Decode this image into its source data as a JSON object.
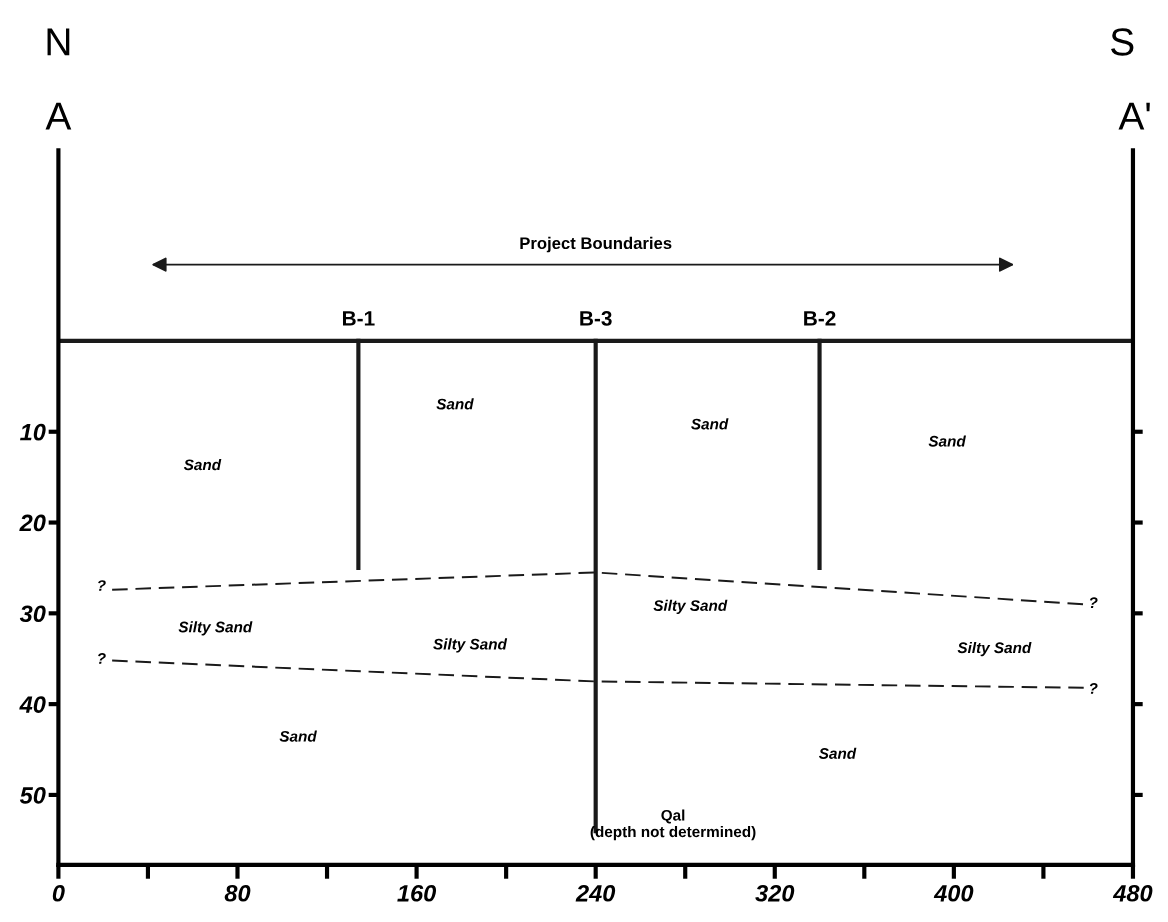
{
  "chart_data": {
    "type": "line",
    "xlim": [
      0,
      480
    ],
    "ylim": [
      57.7,
      -21
    ],
    "xticks": [
      0,
      {
        "value": 40,
        "label": null
      },
      80,
      {
        "value": 120,
        "label": null
      },
      160,
      {
        "value": 200,
        "label": null
      },
      240,
      {
        "value": 280,
        "label": null
      },
      320,
      {
        "value": 360,
        "label": null
      },
      400,
      {
        "value": 440,
        "label": null
      },
      480
    ],
    "yticks": [
      10,
      20,
      30,
      40,
      50
    ],
    "grid": false,
    "legend": false,
    "series": [
      {
        "color": "#1a1a1a",
        "x": [
          0,
          480
        ],
        "values": [
          0,
          0
        ]
      },
      {
        "name": "B-1",
        "color": "#1a1a1a",
        "x": [
          134,
          134
        ],
        "values": [
          0,
          25
        ]
      },
      {
        "name": "B-3",
        "color": "#1a1a1a",
        "x": [
          240,
          240
        ],
        "values": [
          0,
          54
        ]
      },
      {
        "name": "B-2",
        "color": "#1a1a1a",
        "x": [
          340,
          340
        ],
        "values": [
          0,
          25
        ]
      },
      {
        "line_style": "dashed",
        "color": "#1a1a1a",
        "x": [
          24,
          240,
          458
        ],
        "values": [
          27.4,
          25.5,
          29
        ]
      },
      {
        "line_style": "dashed",
        "color": "#1a1a1a",
        "x": [
          24,
          240,
          458
        ],
        "values": [
          35.2,
          37.5,
          38.2
        ]
      }
    ],
    "annotations": [
      "N",
      "S",
      "A",
      "A'",
      "Project Boundaries",
      "Sand",
      "Sand",
      "Sand",
      "Sand",
      "Silty Sand",
      "Silty Sand",
      "Silty Sand",
      "Silty Sand",
      "Sand",
      "Sand",
      "Qal\n(depth not determined)",
      "?",
      "?",
      "?",
      "?"
    ]
  }
}
